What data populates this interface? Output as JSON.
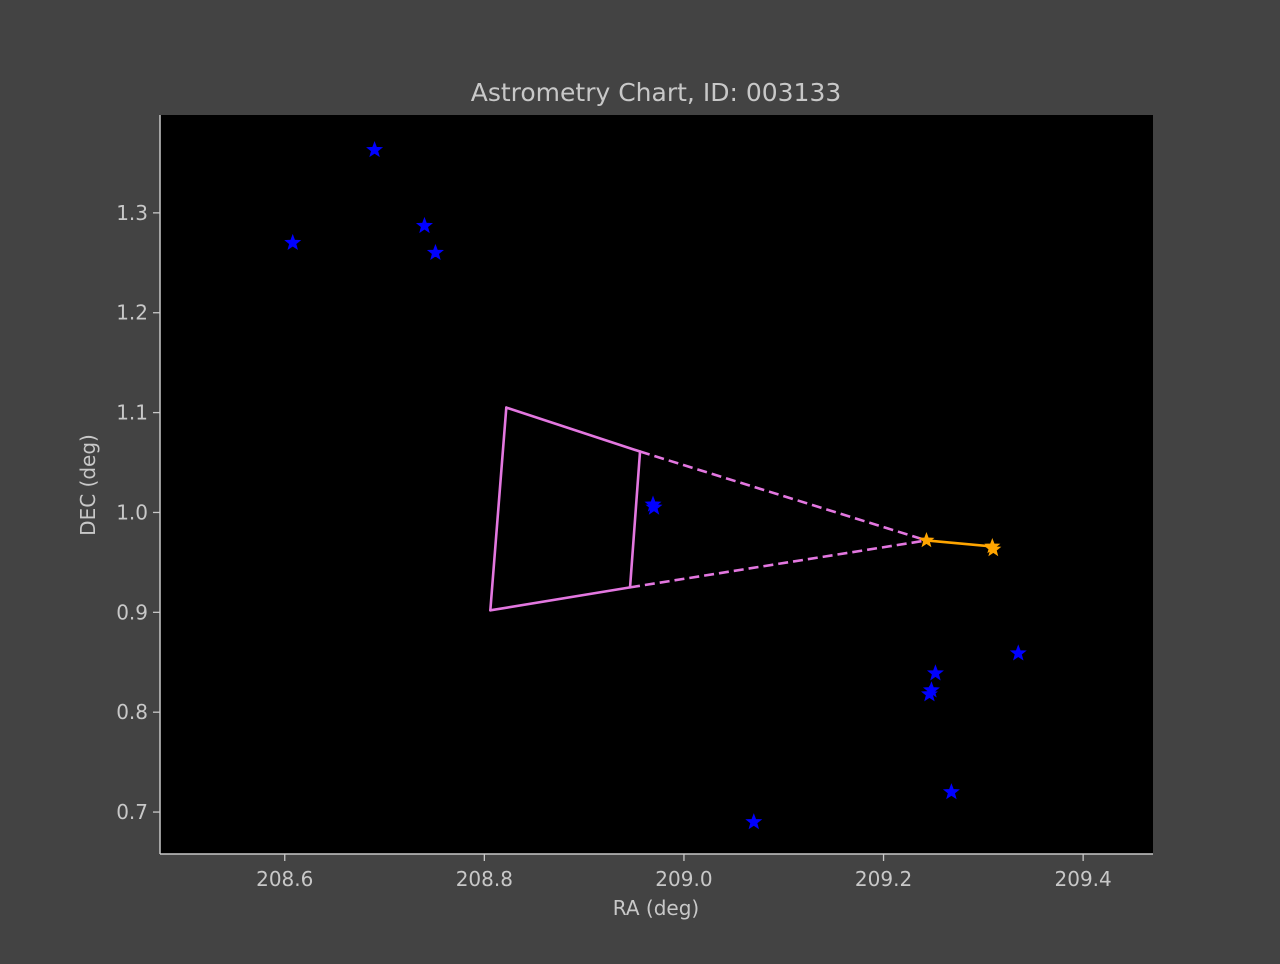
{
  "chart_data": {
    "type": "scatter",
    "title": "Astrometry Chart, ID: 003133",
    "xlabel": "RA (deg)",
    "ylabel": "DEC (deg)",
    "xlim": [
      208.475,
      209.47
    ],
    "ylim": [
      0.658,
      1.398
    ],
    "xticks": [
      208.6,
      208.8,
      209.0,
      209.2,
      209.4
    ],
    "xtick_labels": [
      "208.6",
      "208.8",
      "209.0",
      "209.2",
      "209.4"
    ],
    "yticks": [
      0.7,
      0.8,
      0.9,
      1.0,
      1.1,
      1.2,
      1.3
    ],
    "ytick_labels": [
      "0.7",
      "0.8",
      "0.9",
      "1.0",
      "1.1",
      "1.2",
      "1.3"
    ],
    "grid": false,
    "legend": "none",
    "colors": {
      "figure_bg": "#434343",
      "plot_bg": "#000000",
      "text": "#c8c8c8",
      "axis": "#c8c8c8",
      "stars": "#0000ff",
      "track": "#ffa500",
      "field": "#e377e0"
    },
    "stars": [
      {
        "x": 208.69,
        "y": 1.363
      },
      {
        "x": 208.608,
        "y": 1.27
      },
      {
        "x": 208.74,
        "y": 1.287
      },
      {
        "x": 208.751,
        "y": 1.26
      },
      {
        "x": 208.97,
        "y": 1.005
      },
      {
        "x": 208.969,
        "y": 1.008
      },
      {
        "x": 209.335,
        "y": 0.859
      },
      {
        "x": 209.252,
        "y": 0.839
      },
      {
        "x": 209.248,
        "y": 0.822
      },
      {
        "x": 209.246,
        "y": 0.818
      },
      {
        "x": 209.268,
        "y": 0.72
      },
      {
        "x": 209.07,
        "y": 0.69
      }
    ],
    "track": [
      {
        "x": 209.243,
        "y": 0.972
      },
      {
        "x": 209.309,
        "y": 0.966
      },
      {
        "x": 209.31,
        "y": 0.963
      }
    ],
    "field_solid": [
      [
        [
          208.822,
          1.105
        ],
        [
          208.956,
          1.061
        ]
      ],
      [
        [
          208.956,
          1.061
        ],
        [
          208.946,
          0.925
        ]
      ],
      [
        [
          208.946,
          0.925
        ],
        [
          208.806,
          0.902
        ]
      ],
      [
        [
          208.806,
          0.902
        ],
        [
          208.822,
          1.105
        ]
      ]
    ],
    "field_dashed": [
      [
        [
          208.956,
          1.061
        ],
        [
          209.243,
          0.972
        ]
      ],
      [
        [
          208.946,
          0.925
        ],
        [
          209.243,
          0.972
        ]
      ]
    ]
  }
}
